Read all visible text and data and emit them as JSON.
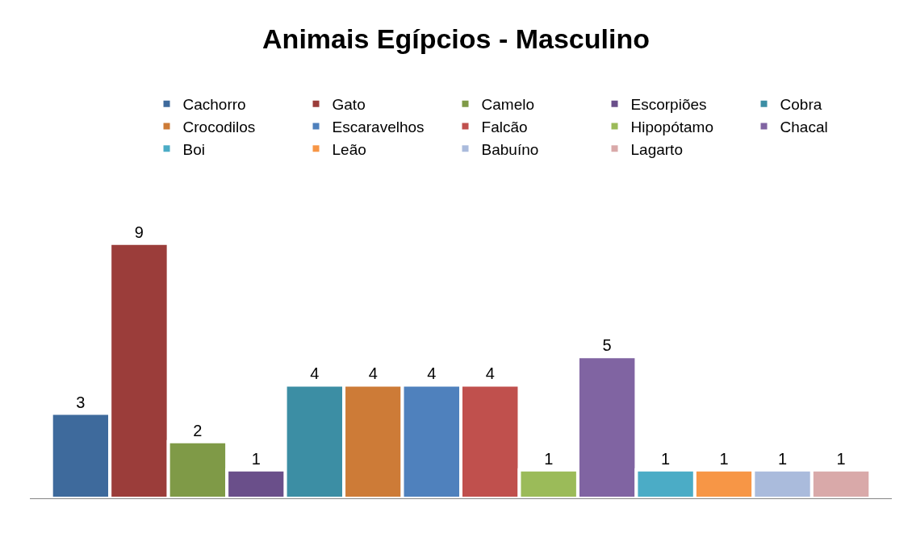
{
  "chart_data": {
    "type": "bar",
    "title": "Animais Egípcios - Masculino",
    "categories": [
      null
    ],
    "data_labels": true,
    "legend": "top",
    "tick_labels": false,
    "series": [
      {
        "name": "Cachorro",
        "color": "#3e6a9c",
        "values": [
          3
        ]
      },
      {
        "name": "Gato",
        "color": "#9b3d3a",
        "values": [
          9
        ]
      },
      {
        "name": "Camelo",
        "color": "#7f9a47",
        "values": [
          2
        ]
      },
      {
        "name": "Escorpiões",
        "color": "#6a4f8a",
        "values": [
          1
        ]
      },
      {
        "name": "Cobra",
        "color": "#3c8ea4",
        "values": [
          4
        ]
      },
      {
        "name": "Crocodilos",
        "color": "#cd7b37",
        "values": [
          4
        ]
      },
      {
        "name": "Escaravelhos",
        "color": "#4f81bd",
        "values": [
          4
        ]
      },
      {
        "name": "Falcão",
        "color": "#c0504d",
        "values": [
          4
        ]
      },
      {
        "name": "Hipopótamo",
        "color": "#9bbb59",
        "values": [
          1
        ]
      },
      {
        "name": "Chacal",
        "color": "#8064a2",
        "values": [
          5
        ]
      },
      {
        "name": "Boi",
        "color": "#4bacc6",
        "values": [
          1
        ]
      },
      {
        "name": "Leão",
        "color": "#f79646",
        "values": [
          1
        ]
      },
      {
        "name": "Babuíno",
        "color": "#aabbdc",
        "values": [
          1
        ]
      },
      {
        "name": "Lagarto",
        "color": "#d9a9a9",
        "values": [
          1
        ]
      }
    ]
  }
}
